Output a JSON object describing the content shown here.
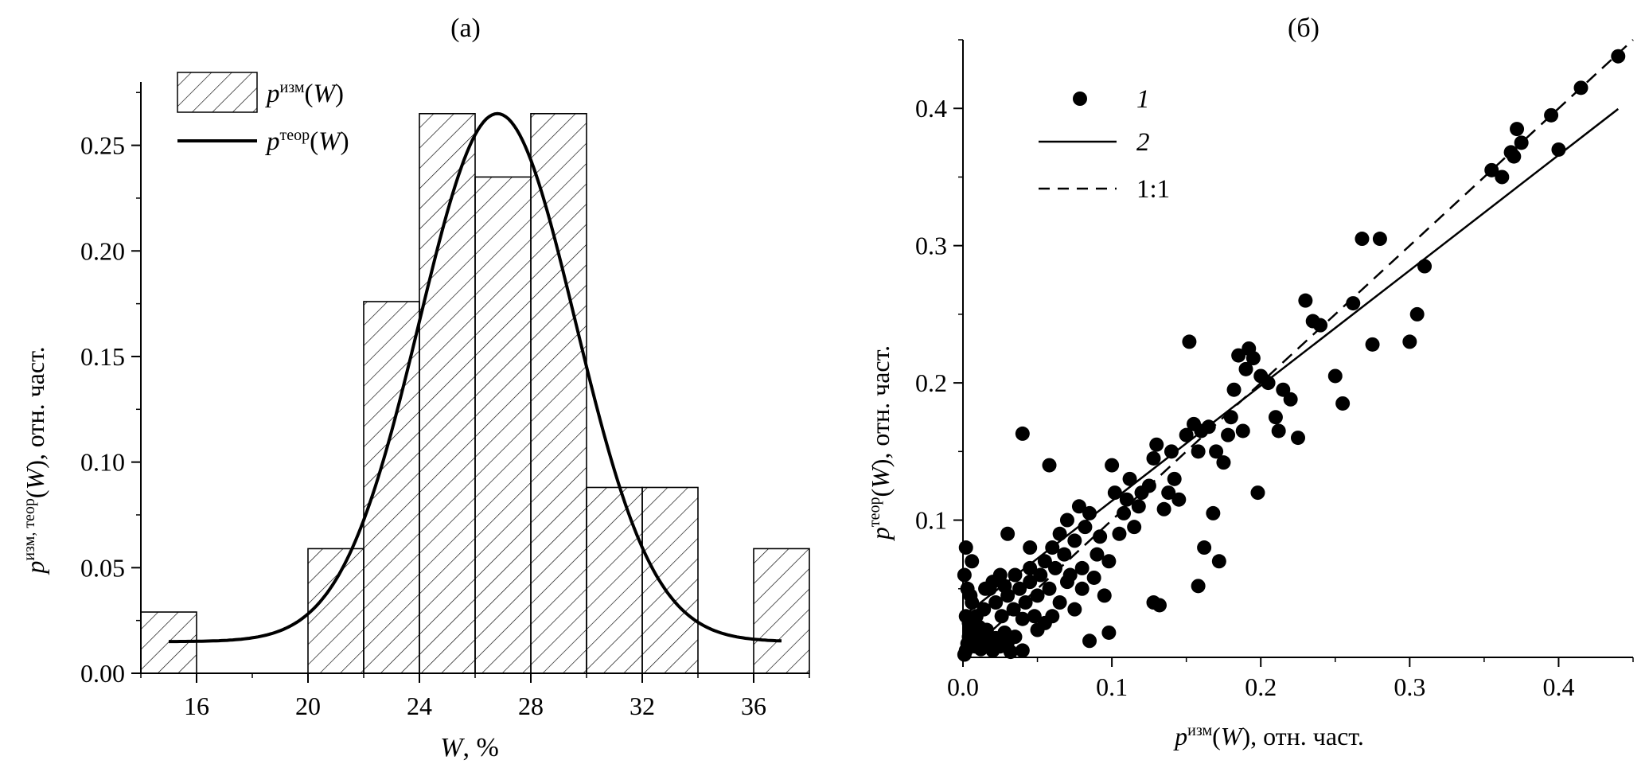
{
  "chart_data": [
    {
      "type": "bar",
      "title": "(a)",
      "xlabel_main": "W",
      "xlabel_rest": ", %",
      "ylabel": {
        "p": "p",
        "sup": "изм, теор",
        "rest_open": "(",
        "w": "W",
        "rest_close": "), отн. част."
      },
      "xlim": [
        14,
        38
      ],
      "ylim": [
        0,
        0.28
      ],
      "xticks": [
        16,
        20,
        24,
        28,
        32,
        36
      ],
      "xtick_labels": [
        "16",
        "20",
        "24",
        "28",
        "32",
        "36"
      ],
      "yticks": [
        0,
        0.05,
        0.1,
        0.15,
        0.2,
        0.25
      ],
      "ytick_labels": [
        "0.00",
        "0.05",
        "0.10",
        "0.15",
        "0.20",
        "0.25"
      ],
      "bins": [
        {
          "from": 14,
          "to": 16,
          "value": 0.029
        },
        {
          "from": 20,
          "to": 22,
          "value": 0.059
        },
        {
          "from": 22,
          "to": 24,
          "value": 0.176
        },
        {
          "from": 24,
          "to": 26,
          "value": 0.265
        },
        {
          "from": 26,
          "to": 28,
          "value": 0.235
        },
        {
          "from": 28,
          "to": 30,
          "value": 0.265
        },
        {
          "from": 30,
          "to": 32,
          "value": 0.088
        },
        {
          "from": 32,
          "to": 34,
          "value": 0.088
        },
        {
          "from": 36,
          "to": 38,
          "value": 0.059
        }
      ],
      "curve": {
        "mean": 26.8,
        "sd": 2.8,
        "peak": 0.265,
        "base": 0.015,
        "x_from": 15,
        "x_to": 37
      },
      "legend": [
        {
          "p": "p",
          "sup": "изм",
          "open": "(",
          "w": "W",
          "close": ")"
        },
        {
          "p": "p",
          "sup": "теор",
          "open": "(",
          "w": "W",
          "close": ")"
        }
      ]
    },
    {
      "type": "scatter",
      "title": "(б)",
      "xlabel": {
        "p": "p",
        "sup": "изм",
        "open": "(",
        "w": "W",
        "rest": "), отн. част."
      },
      "ylabel": {
        "p": "p",
        "sup": "теор",
        "open": "(",
        "w": "W",
        "rest": "), отн. част."
      },
      "xlim": [
        0,
        0.45
      ],
      "ylim": [
        0,
        0.45
      ],
      "xticks": [
        0,
        0.1,
        0.2,
        0.3,
        0.4
      ],
      "xtick_labels": [
        "0.0",
        "0.1",
        "0.2",
        "0.3",
        "0.4"
      ],
      "yticks": [
        0.1,
        0.2,
        0.3,
        0.4
      ],
      "ytick_labels": [
        "0.1",
        "0.2",
        "0.3",
        "0.4"
      ],
      "regression": {
        "slope": 0.84,
        "intercept": 0.03
      },
      "legend": [
        "1",
        "2",
        "1:1"
      ],
      "points": [
        [
          0.001,
          0.002
        ],
        [
          0.002,
          0.005
        ],
        [
          0.003,
          0.01
        ],
        [
          0.004,
          0.015
        ],
        [
          0.005,
          0.02
        ],
        [
          0.002,
          0.03
        ],
        [
          0.006,
          0.04
        ],
        [
          0.008,
          0.008
        ],
        [
          0.01,
          0.012
        ],
        [
          0.012,
          0.006
        ],
        [
          0.004,
          0.025
        ],
        [
          0.007,
          0.018
        ],
        [
          0.009,
          0.03
        ],
        [
          0.011,
          0.022
        ],
        [
          0.013,
          0.015
        ],
        [
          0.015,
          0.009
        ],
        [
          0.003,
          0.05
        ],
        [
          0.001,
          0.06
        ],
        [
          0.005,
          0.045
        ],
        [
          0.016,
          0.02
        ],
        [
          0.018,
          0.012
        ],
        [
          0.02,
          0.005
        ],
        [
          0.022,
          0.014
        ],
        [
          0.025,
          0.008
        ],
        [
          0.028,
          0.018
        ],
        [
          0.03,
          0.011
        ],
        [
          0.032,
          0.004
        ],
        [
          0.014,
          0.035
        ],
        [
          0.006,
          0.07
        ],
        [
          0.002,
          0.08
        ],
        [
          0.018,
          0.05
        ],
        [
          0.022,
          0.04
        ],
        [
          0.026,
          0.03
        ],
        [
          0.03,
          0.045
        ],
        [
          0.034,
          0.035
        ],
        [
          0.038,
          0.05
        ],
        [
          0.04,
          0.028
        ],
        [
          0.042,
          0.04
        ],
        [
          0.045,
          0.055
        ],
        [
          0.048,
          0.03
        ],
        [
          0.015,
          0.05
        ],
        [
          0.02,
          0.055
        ],
        [
          0.025,
          0.06
        ],
        [
          0.028,
          0.052
        ],
        [
          0.035,
          0.06
        ],
        [
          0.05,
          0.045
        ],
        [
          0.052,
          0.06
        ],
        [
          0.055,
          0.07
        ],
        [
          0.058,
          0.05
        ],
        [
          0.06,
          0.08
        ],
        [
          0.062,
          0.065
        ],
        [
          0.065,
          0.09
        ],
        [
          0.068,
          0.075
        ],
        [
          0.07,
          0.1
        ],
        [
          0.072,
          0.06
        ],
        [
          0.075,
          0.085
        ],
        [
          0.078,
          0.11
        ],
        [
          0.08,
          0.065
        ],
        [
          0.082,
          0.095
        ],
        [
          0.085,
          0.105
        ],
        [
          0.088,
          0.058
        ],
        [
          0.09,
          0.075
        ],
        [
          0.092,
          0.088
        ],
        [
          0.095,
          0.045
        ],
        [
          0.098,
          0.07
        ],
        [
          0.1,
          0.14
        ],
        [
          0.102,
          0.12
        ],
        [
          0.105,
          0.09
        ],
        [
          0.108,
          0.105
        ],
        [
          0.11,
          0.115
        ],
        [
          0.112,
          0.13
        ],
        [
          0.115,
          0.095
        ],
        [
          0.118,
          0.11
        ],
        [
          0.12,
          0.12
        ],
        [
          0.125,
          0.125
        ],
        [
          0.128,
          0.145
        ],
        [
          0.13,
          0.155
        ],
        [
          0.135,
          0.108
        ],
        [
          0.138,
          0.12
        ],
        [
          0.14,
          0.15
        ],
        [
          0.142,
          0.13
        ],
        [
          0.145,
          0.115
        ],
        [
          0.15,
          0.162
        ],
        [
          0.152,
          0.23
        ],
        [
          0.155,
          0.17
        ],
        [
          0.158,
          0.15
        ],
        [
          0.16,
          0.165
        ],
        [
          0.162,
          0.08
        ],
        [
          0.165,
          0.168
        ],
        [
          0.168,
          0.105
        ],
        [
          0.17,
          0.15
        ],
        [
          0.172,
          0.07
        ],
        [
          0.175,
          0.142
        ],
        [
          0.178,
          0.162
        ],
        [
          0.18,
          0.175
        ],
        [
          0.182,
          0.195
        ],
        [
          0.185,
          0.22
        ],
        [
          0.188,
          0.165
        ],
        [
          0.19,
          0.21
        ],
        [
          0.192,
          0.225
        ],
        [
          0.195,
          0.218
        ],
        [
          0.198,
          0.12
        ],
        [
          0.2,
          0.205
        ],
        [
          0.205,
          0.2
        ],
        [
          0.21,
          0.175
        ],
        [
          0.212,
          0.165
        ],
        [
          0.215,
          0.195
        ],
        [
          0.22,
          0.188
        ],
        [
          0.225,
          0.16
        ],
        [
          0.23,
          0.26
        ],
        [
          0.235,
          0.245
        ],
        [
          0.24,
          0.242
        ],
        [
          0.25,
          0.205
        ],
        [
          0.255,
          0.185
        ],
        [
          0.262,
          0.258
        ],
        [
          0.268,
          0.305
        ],
        [
          0.275,
          0.228
        ],
        [
          0.28,
          0.305
        ],
        [
          0.3,
          0.23
        ],
        [
          0.305,
          0.25
        ],
        [
          0.31,
          0.285
        ],
        [
          0.355,
          0.355
        ],
        [
          0.362,
          0.35
        ],
        [
          0.368,
          0.368
        ],
        [
          0.37,
          0.365
        ],
        [
          0.372,
          0.385
        ],
        [
          0.375,
          0.375
        ],
        [
          0.395,
          0.395
        ],
        [
          0.4,
          0.37
        ],
        [
          0.415,
          0.415
        ],
        [
          0.44,
          0.438
        ],
        [
          0.04,
          0.163
        ],
        [
          0.058,
          0.14
        ],
        [
          0.085,
          0.012
        ],
        [
          0.098,
          0.018
        ],
        [
          0.128,
          0.04
        ],
        [
          0.132,
          0.038
        ],
        [
          0.158,
          0.052
        ],
        [
          0.03,
          0.09
        ],
        [
          0.045,
          0.08
        ],
        [
          0.05,
          0.02
        ],
        [
          0.035,
          0.015
        ],
        [
          0.04,
          0.005
        ],
        [
          0.06,
          0.03
        ],
        [
          0.065,
          0.04
        ],
        [
          0.07,
          0.055
        ],
        [
          0.075,
          0.035
        ],
        [
          0.08,
          0.05
        ],
        [
          0.055,
          0.025
        ],
        [
          0.045,
          0.065
        ]
      ]
    }
  ]
}
